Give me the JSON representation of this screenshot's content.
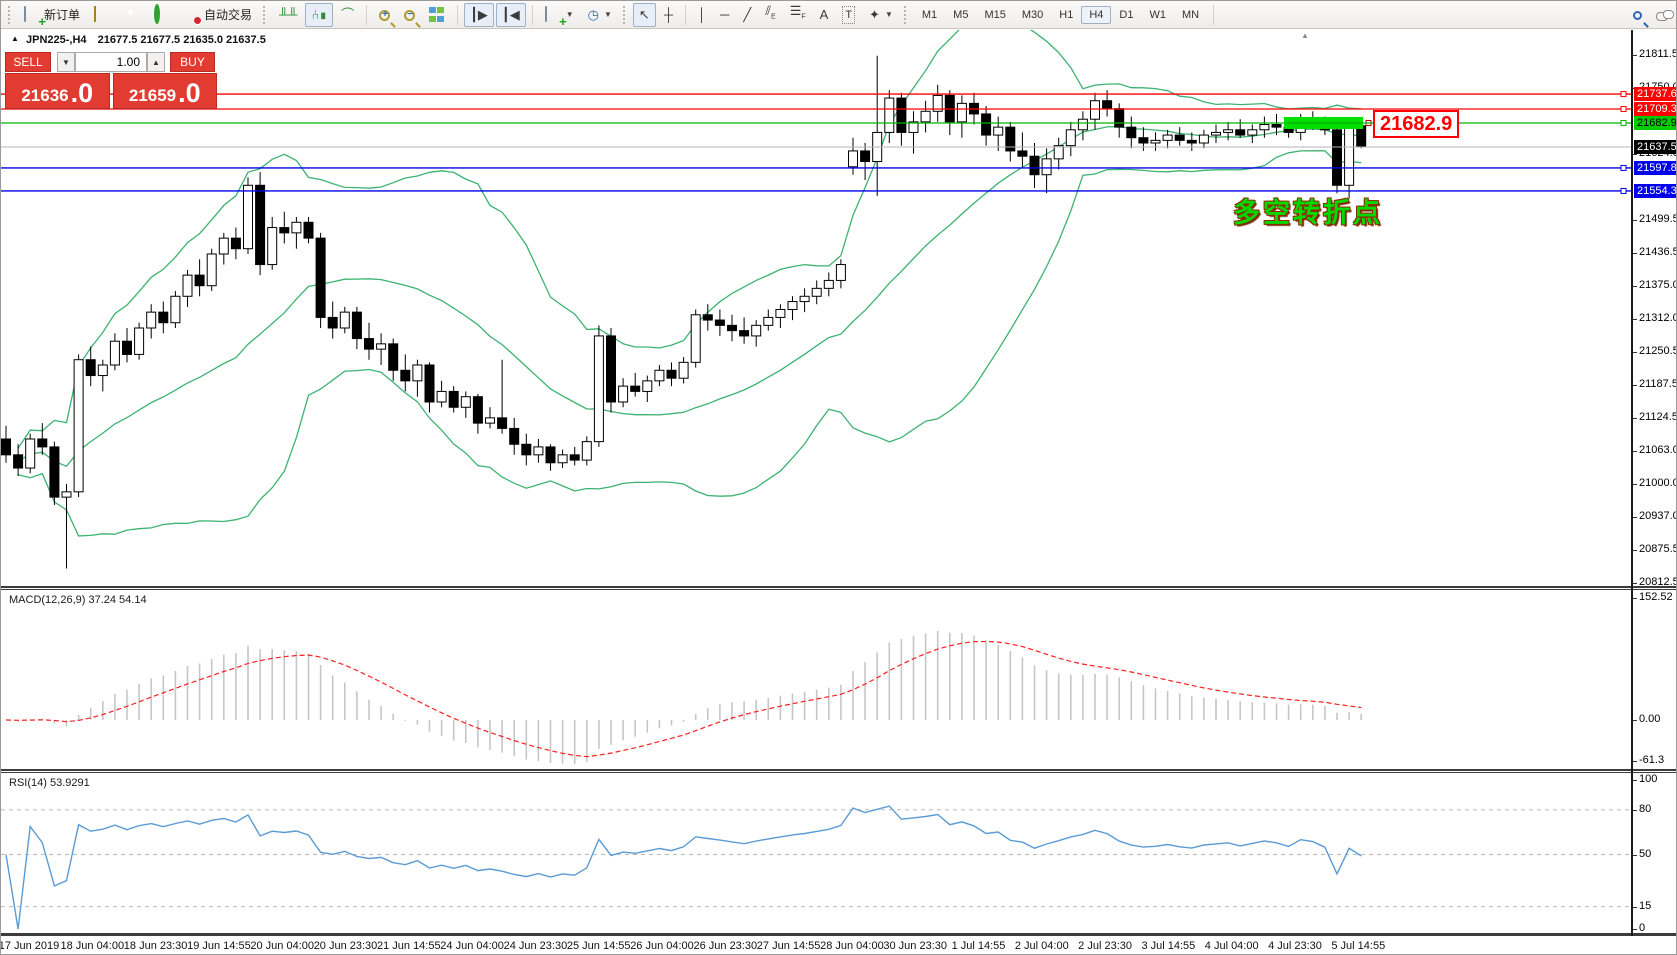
{
  "toolbar": {
    "new_order_label": "新订单",
    "autotrading_label": "自动交易",
    "icons": [
      "new-order-icon",
      "eraser-icon",
      "profile-icon",
      "signal-icon",
      "autotrading-icon",
      "bar-chart-icon",
      "candlestick-icon",
      "line-chart-icon",
      "zoom-in-icon",
      "zoom-out-icon",
      "tile-windows-icon",
      "auto-scroll-icon",
      "chart-shift-icon",
      "new-chart-icon",
      "period-clock-icon",
      "cursor-icon",
      "crosshair-icon",
      "vertical-line-icon",
      "horizontal-line-icon",
      "trendline-icon",
      "equidistant-channel-icon",
      "fibonacci-icon",
      "text-icon",
      "text-label-icon",
      "arrows-icon",
      "search-icon",
      "chat-icon"
    ],
    "timeframes": [
      "M1",
      "M5",
      "M15",
      "M30",
      "H1",
      "H4",
      "D1",
      "W1",
      "MN"
    ],
    "active_timeframe": "H4"
  },
  "chart": {
    "title": "JPN225-,H4",
    "ohlc_display": "21677.5 21677.5 21635.0 21637.5",
    "trade_panel": {
      "sell_label": "SELL",
      "buy_label": "BUY",
      "volume": "1.00",
      "spin_down": "▼",
      "spin_up": "▲",
      "sell_price_main": "21636",
      "sell_price_frac": ".0",
      "buy_price_main": "21659",
      "buy_price_frac": ".0"
    },
    "price_axis_ticks": [
      21811.5,
      21750.0,
      21624.0,
      21499.5,
      21436.5,
      21375.0,
      21312.0,
      21250.5,
      21187.5,
      21124.5,
      21063.0,
      21000.0,
      20937.0,
      20875.5,
      20812.5
    ],
    "object_lines": [
      {
        "price": 21737.6,
        "color": "#ff0000",
        "badge_bg": "#ff0000",
        "badge_fg": "#ffffff"
      },
      {
        "price": 21709.3,
        "color": "#ff0000",
        "badge_bg": "#ff0000",
        "badge_fg": "#ffffff"
      },
      {
        "price": 21682.9,
        "color": "#00b400",
        "badge_bg": "#00cc00",
        "badge_fg": "#000000"
      },
      {
        "price": 21597.8,
        "color": "#0000e8",
        "badge_bg": "#0000ee",
        "badge_fg": "#ffffff"
      },
      {
        "price": 21554.3,
        "color": "#0000e8",
        "badge_bg": "#0000ee",
        "badge_fg": "#ffffff"
      }
    ],
    "current_price": {
      "price": 21637.5,
      "line_color": "#b4b4b4",
      "badge_bg": "#000000",
      "badge_fg": "#ffffff"
    },
    "highlight": {
      "price": 21682.9,
      "color": "#00e000"
    },
    "annotations": {
      "price_callout": "21682.9",
      "cn_text": "多空转折点"
    }
  },
  "macd": {
    "label": "MACD(12,26,9) 37.24 54.14",
    "axis_labels": [
      "152.52",
      "0.00",
      "-61.3"
    ],
    "histogram_color": "#c6c6c6",
    "signal_color": "#ff2020"
  },
  "rsi": {
    "label": "RSI(14) 53.9291",
    "axis_labels": [
      "100",
      "80",
      "50",
      "15",
      "0"
    ],
    "levels": [
      80,
      50,
      15
    ],
    "line_color": "#5b9bd5"
  },
  "time_axis": {
    "labels": [
      "17 Jun 2019",
      "18 Jun 04:00",
      "18 Jun 23:30",
      "19 Jun 14:55",
      "20 Jun 04:00",
      "20 Jun 23:30",
      "21 Jun 14:55",
      "24 Jun 04:00",
      "24 Jun 23:30",
      "25 Jun 14:55",
      "26 Jun 04:00",
      "26 Jun 23:30",
      "27 Jun 14:55",
      "28 Jun 04:00",
      "30 Jun 23:30",
      "1 Jul 14:55",
      "2 Jul 04:00",
      "2 Jul 23:30",
      "3 Jul 14:55",
      "4 Jul 04:00",
      "4 Jul 23:30",
      "5 Jul 14:55"
    ]
  },
  "colors": {
    "bollinger": "#3cb371",
    "candle_up_fill": "#ffffff",
    "candle_down_fill": "#000000",
    "candle_stroke": "#000000",
    "trade_red": "#e23b31"
  },
  "chart_data": {
    "type": "candlestick",
    "symbol_timeframe": "JPN225-,H4",
    "indicators": [
      "Bollinger Bands(20,2)",
      "MACD(12,26,9)",
      "RSI(14)"
    ],
    "ohlc": [
      [
        21085,
        21110,
        21040,
        21055
      ],
      [
        21055,
        21075,
        21015,
        21030
      ],
      [
        21030,
        21095,
        21020,
        21085
      ],
      [
        21085,
        21115,
        21055,
        21070
      ],
      [
        21070,
        21080,
        20960,
        20975
      ],
      [
        20975,
        21000,
        20840,
        20985
      ],
      [
        20985,
        21245,
        20975,
        21235
      ],
      [
        21235,
        21260,
        21185,
        21205
      ],
      [
        21205,
        21235,
        21175,
        21225
      ],
      [
        21225,
        21285,
        21215,
        21270
      ],
      [
        21270,
        21295,
        21230,
        21245
      ],
      [
        21245,
        21305,
        21235,
        21295
      ],
      [
        21295,
        21340,
        21275,
        21325
      ],
      [
        21325,
        21345,
        21285,
        21305
      ],
      [
        21305,
        21365,
        21295,
        21355
      ],
      [
        21355,
        21405,
        21335,
        21395
      ],
      [
        21395,
        21425,
        21355,
        21375
      ],
      [
        21375,
        21445,
        21365,
        21435
      ],
      [
        21435,
        21475,
        21415,
        21465
      ],
      [
        21465,
        21485,
        21425,
        21445
      ],
      [
        21445,
        21580,
        21435,
        21565
      ],
      [
        21565,
        21590,
        21395,
        21415
      ],
      [
        21415,
        21505,
        21405,
        21485
      ],
      [
        21485,
        21515,
        21455,
        21475
      ],
      [
        21475,
        21505,
        21445,
        21495
      ],
      [
        21495,
        21505,
        21455,
        21465
      ],
      [
        21465,
        21475,
        21295,
        21315
      ],
      [
        21315,
        21345,
        21275,
        21295
      ],
      [
        21295,
        21335,
        21285,
        21325
      ],
      [
        21325,
        21335,
        21255,
        21275
      ],
      [
        21275,
        21305,
        21235,
        21255
      ],
      [
        21255,
        21285,
        21225,
        21265
      ],
      [
        21265,
        21275,
        21195,
        21215
      ],
      [
        21215,
        21245,
        21175,
        21195
      ],
      [
        21195,
        21235,
        21165,
        21225
      ],
      [
        21225,
        21230,
        21135,
        21155
      ],
      [
        21155,
        21195,
        21145,
        21175
      ],
      [
        21175,
        21185,
        21135,
        21145
      ],
      [
        21145,
        21175,
        21125,
        21165
      ],
      [
        21165,
        21170,
        21095,
        21115
      ],
      [
        21115,
        21145,
        21105,
        21125
      ],
      [
        21125,
        21235,
        21095,
        21105
      ],
      [
        21105,
        21125,
        21055,
        21075
      ],
      [
        21075,
        21095,
        21035,
        21055
      ],
      [
        21055,
        21085,
        21040,
        21070
      ],
      [
        21070,
        21075,
        21025,
        21040
      ],
      [
        21040,
        21065,
        21030,
        21055
      ],
      [
        21055,
        21070,
        21035,
        21045
      ],
      [
        21045,
        21090,
        21035,
        21080
      ],
      [
        21080,
        21300,
        21070,
        21280
      ],
      [
        21280,
        21295,
        21135,
        21155
      ],
      [
        21155,
        21200,
        21145,
        21185
      ],
      [
        21185,
        21210,
        21165,
        21175
      ],
      [
        21175,
        21205,
        21155,
        21195
      ],
      [
        21195,
        21225,
        21185,
        21215
      ],
      [
        21215,
        21230,
        21185,
        21200
      ],
      [
        21200,
        21240,
        21190,
        21230
      ],
      [
        21230,
        21330,
        21220,
        21320
      ],
      [
        21320,
        21340,
        21290,
        21310
      ],
      [
        21310,
        21330,
        21280,
        21300
      ],
      [
        21300,
        21320,
        21270,
        21290
      ],
      [
        21290,
        21315,
        21265,
        21280
      ],
      [
        21280,
        21310,
        21260,
        21300
      ],
      [
        21300,
        21330,
        21290,
        21315
      ],
      [
        21315,
        21340,
        21295,
        21330
      ],
      [
        21330,
        21355,
        21310,
        21345
      ],
      [
        21345,
        21370,
        21325,
        21355
      ],
      [
        21355,
        21385,
        21340,
        21370
      ],
      [
        21370,
        21400,
        21355,
        21385
      ],
      [
        21385,
        21425,
        21370,
        21415
      ],
      [
        21600,
        21655,
        21585,
        21630
      ],
      [
        21630,
        21645,
        21575,
        21610
      ],
      [
        21610,
        21810,
        21545,
        21665
      ],
      [
        21665,
        21745,
        21645,
        21730
      ],
      [
        21730,
        21740,
        21640,
        21665
      ],
      [
        21665,
        21705,
        21625,
        21685
      ],
      [
        21685,
        21725,
        21665,
        21705
      ],
      [
        21705,
        21755,
        21685,
        21735
      ],
      [
        21735,
        21745,
        21660,
        21685
      ],
      [
        21685,
        21735,
        21655,
        21720
      ],
      [
        21720,
        21740,
        21680,
        21700
      ],
      [
        21700,
        21715,
        21640,
        21660
      ],
      [
        21660,
        21695,
        21630,
        21675
      ],
      [
        21675,
        21685,
        21610,
        21630
      ],
      [
        21630,
        21665,
        21600,
        21620
      ],
      [
        21620,
        21645,
        21560,
        21585
      ],
      [
        21585,
        21635,
        21550,
        21615
      ],
      [
        21615,
        21655,
        21595,
        21640
      ],
      [
        21640,
        21685,
        21620,
        21670
      ],
      [
        21670,
        21705,
        21650,
        21690
      ],
      [
        21690,
        21740,
        21670,
        21725
      ],
      [
        21725,
        21745,
        21695,
        21710
      ],
      [
        21710,
        21720,
        21655,
        21675
      ],
      [
        21675,
        21695,
        21635,
        21655
      ],
      [
        21655,
        21675,
        21630,
        21645
      ],
      [
        21645,
        21665,
        21630,
        21650
      ],
      [
        21650,
        21670,
        21635,
        21660
      ],
      [
        21660,
        21675,
        21640,
        21650
      ],
      [
        21650,
        21665,
        21630,
        21645
      ],
      [
        21645,
        21670,
        21635,
        21660
      ],
      [
        21660,
        21680,
        21645,
        21665
      ],
      [
        21665,
        21685,
        21650,
        21670
      ],
      [
        21670,
        21690,
        21655,
        21660
      ],
      [
        21660,
        21680,
        21645,
        21670
      ],
      [
        21670,
        21695,
        21655,
        21680
      ],
      [
        21680,
        21700,
        21660,
        21675
      ],
      [
        21675,
        21690,
        21655,
        21665
      ],
      [
        21665,
        21700,
        21650,
        21690
      ],
      [
        21690,
        21705,
        21670,
        21685
      ],
      [
        21685,
        21695,
        21660,
        21670
      ],
      [
        21670,
        21675,
        21550,
        21565
      ],
      [
        21565,
        21690,
        21540,
        21677
      ],
      [
        21677.5,
        21677.5,
        21635,
        21637.5
      ]
    ]
  }
}
